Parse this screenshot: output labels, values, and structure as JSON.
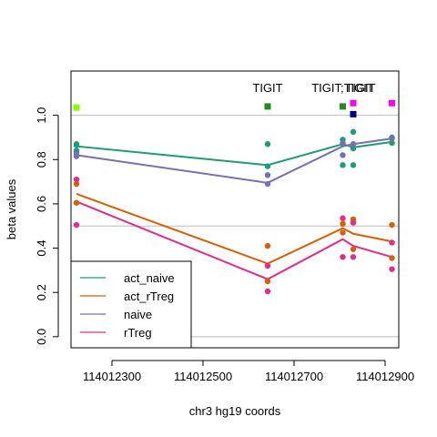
{
  "chart_data": {
    "type": "scatter",
    "xlabel": "chr3 hg19 coords",
    "ylabel": "beta values",
    "xlim": [
      114012210,
      114012930
    ],
    "ylim": [
      -0.05,
      1.2
    ],
    "x_ticks": [
      114012300,
      114012500,
      114012700,
      114012900
    ],
    "y_ticks": [
      0.0,
      0.2,
      0.4,
      0.6,
      0.8,
      1.0
    ],
    "y_tick_labels": [
      "0.0",
      "0.2",
      "0.4",
      "0.6",
      "0.8",
      "1.0"
    ],
    "hlines": [
      1.0,
      0.5,
      0.0
    ],
    "gene_labels": [
      {
        "x": 114012642,
        "text": "TIGIT"
      },
      {
        "x": 114012807,
        "text": "TIGIT;TIGIT"
      },
      {
        "x": 114012846,
        "text": "TIGIT"
      }
    ],
    "legend": {
      "position": "bottom-left"
    },
    "series": [
      {
        "name": "act_naive",
        "color": "#1b9e77",
        "line": [
          {
            "x": 114012222,
            "y": 0.86
          },
          {
            "x": 114012642,
            "y": 0.775
          },
          {
            "x": 114012807,
            "y": 0.87
          },
          {
            "x": 114012830,
            "y": 0.855
          },
          {
            "x": 114012915,
            "y": 0.88
          }
        ],
        "points": [
          {
            "x": 114012222,
            "y": 0.87
          },
          {
            "x": 114012222,
            "y": 0.865
          },
          {
            "x": 114012222,
            "y": 0.84
          },
          {
            "x": 114012222,
            "y": 0.835
          },
          {
            "x": 114012642,
            "y": 0.87
          },
          {
            "x": 114012642,
            "y": 0.77
          },
          {
            "x": 114012807,
            "y": 0.89
          },
          {
            "x": 114012807,
            "y": 0.87
          },
          {
            "x": 114012807,
            "y": 0.775
          },
          {
            "x": 114012830,
            "y": 0.925
          },
          {
            "x": 114012830,
            "y": 0.85
          },
          {
            "x": 114012830,
            "y": 0.775
          },
          {
            "x": 114012915,
            "y": 0.9
          },
          {
            "x": 114012915,
            "y": 0.875
          }
        ]
      },
      {
        "name": "act_rTreg",
        "color": "#d95f02",
        "line": [
          {
            "x": 114012222,
            "y": 0.645
          },
          {
            "x": 114012642,
            "y": 0.33
          },
          {
            "x": 114012807,
            "y": 0.49
          },
          {
            "x": 114012830,
            "y": 0.465
          },
          {
            "x": 114012915,
            "y": 0.43
          }
        ],
        "points": [
          {
            "x": 114012222,
            "y": 0.69
          },
          {
            "x": 114012222,
            "y": 0.605
          },
          {
            "x": 114012642,
            "y": 0.41
          },
          {
            "x": 114012642,
            "y": 0.25
          },
          {
            "x": 114012807,
            "y": 0.51
          },
          {
            "x": 114012807,
            "y": 0.47
          },
          {
            "x": 114012830,
            "y": 0.53
          },
          {
            "x": 114012830,
            "y": 0.395
          },
          {
            "x": 114012915,
            "y": 0.505
          },
          {
            "x": 114012915,
            "y": 0.355
          }
        ]
      },
      {
        "name": "naive",
        "color": "#7570b3",
        "line": [
          {
            "x": 114012222,
            "y": 0.82
          },
          {
            "x": 114012642,
            "y": 0.695
          },
          {
            "x": 114012807,
            "y": 0.86
          },
          {
            "x": 114012830,
            "y": 0.87
          },
          {
            "x": 114012915,
            "y": 0.895
          }
        ],
        "points": [
          {
            "x": 114012222,
            "y": 0.825
          },
          {
            "x": 114012222,
            "y": 0.815
          },
          {
            "x": 114012642,
            "y": 0.73
          },
          {
            "x": 114012642,
            "y": 0.69
          },
          {
            "x": 114012807,
            "y": 0.875
          },
          {
            "x": 114012807,
            "y": 0.82
          },
          {
            "x": 114012830,
            "y": 0.87
          },
          {
            "x": 114012915,
            "y": 0.895
          }
        ]
      },
      {
        "name": "rTreg",
        "color": "#e7298a",
        "line": [
          {
            "x": 114012222,
            "y": 0.61
          },
          {
            "x": 114012642,
            "y": 0.26
          },
          {
            "x": 114012807,
            "y": 0.44
          },
          {
            "x": 114012830,
            "y": 0.41
          },
          {
            "x": 114012915,
            "y": 0.36
          }
        ],
        "points": [
          {
            "x": 114012222,
            "y": 0.71
          },
          {
            "x": 114012222,
            "y": 0.505
          },
          {
            "x": 114012642,
            "y": 0.32
          },
          {
            "x": 114012642,
            "y": 0.205
          },
          {
            "x": 114012807,
            "y": 0.535
          },
          {
            "x": 114012807,
            "y": 0.36
          },
          {
            "x": 114012830,
            "y": 0.515
          },
          {
            "x": 114012830,
            "y": 0.36
          },
          {
            "x": 114012915,
            "y": 0.425
          },
          {
            "x": 114012915,
            "y": 0.305
          }
        ]
      }
    ],
    "markers": [
      {
        "x": 114012222,
        "y": 1.035,
        "color": "#7fff00"
      },
      {
        "x": 114012642,
        "y": 1.04,
        "color": "#228b22"
      },
      {
        "x": 114012807,
        "y": 1.04,
        "color": "#228b22"
      },
      {
        "x": 114012830,
        "y": 1.005,
        "color": "#00008b"
      },
      {
        "x": 114012830,
        "y": 1.055,
        "color": "#ff00ff"
      },
      {
        "x": 114012915,
        "y": 1.055,
        "color": "#ff00ff"
      }
    ]
  }
}
